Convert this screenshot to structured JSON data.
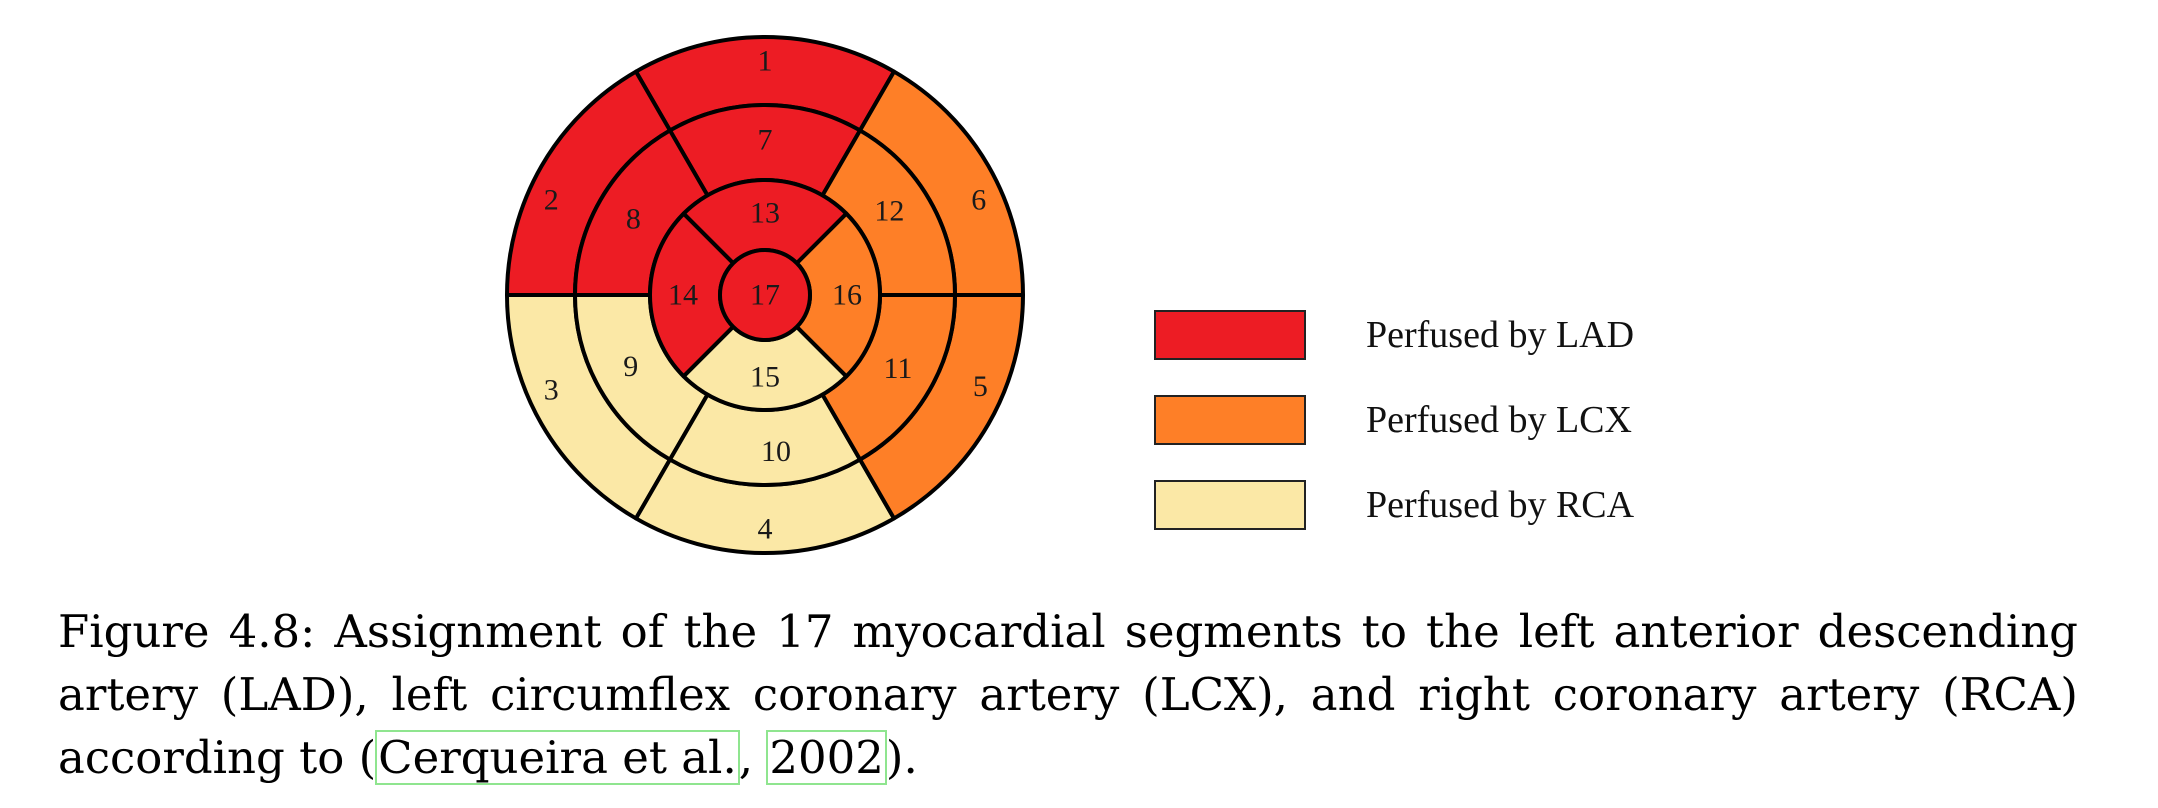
{
  "colors": {
    "LAD": "#ed1c24",
    "LCX": "#fe7f27",
    "RCA": "#fbe8a6",
    "stroke": "#000000",
    "citation_box": "#8fe58f"
  },
  "segments": [
    {
      "label": "1",
      "territory": "LAD"
    },
    {
      "label": "2",
      "territory": "LAD"
    },
    {
      "label": "3",
      "territory": "RCA"
    },
    {
      "label": "4",
      "territory": "RCA"
    },
    {
      "label": "5",
      "territory": "LCX"
    },
    {
      "label": "6",
      "territory": "LCX"
    },
    {
      "label": "7",
      "territory": "LAD"
    },
    {
      "label": "8",
      "territory": "LAD"
    },
    {
      "label": "9",
      "territory": "RCA"
    },
    {
      "label": "10",
      "territory": "RCA"
    },
    {
      "label": "11",
      "territory": "LCX"
    },
    {
      "label": "12",
      "territory": "LCX"
    },
    {
      "label": "13",
      "territory": "LAD"
    },
    {
      "label": "14",
      "territory": "LAD"
    },
    {
      "label": "15",
      "territory": "RCA"
    },
    {
      "label": "16",
      "territory": "LCX"
    },
    {
      "label": "17",
      "territory": "LAD"
    }
  ],
  "legend": [
    {
      "territory": "LAD",
      "label": "Perfused by LAD"
    },
    {
      "territory": "LCX",
      "label": "Perfused by LCX"
    },
    {
      "territory": "RCA",
      "label": "Perfused by RCA"
    }
  ],
  "caption": {
    "prefix": "Figure 4.8:  Assignment of the 17 myocardial segments to the left anterior descending artery (LAD), left circumflex coronary artery (LCX), and right coronary artery (RCA) according to (",
    "cite_author": "Cerqueira et al.",
    "cite_sep": ", ",
    "cite_year": "2002",
    "suffix": ")."
  }
}
